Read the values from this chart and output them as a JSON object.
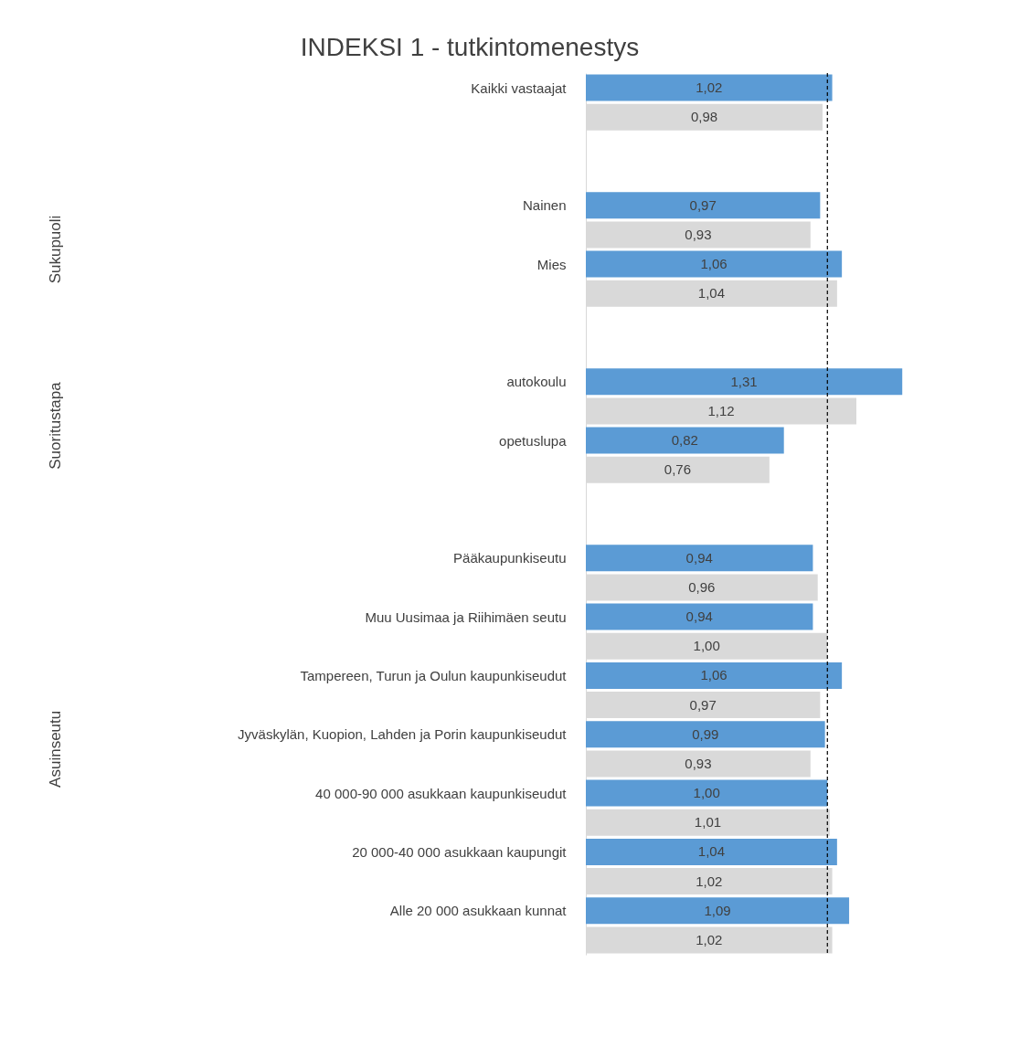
{
  "chart_data": {
    "type": "bar",
    "orientation": "horizontal",
    "title": "INDEKSI 1 - tutkintomenestys",
    "categories": [
      "Kaikki vastaajat",
      null,
      "Nainen",
      "Mies",
      null,
      "autokoulu",
      "opetuslupa",
      null,
      "Pääkaupunkiseutu",
      "Muu Uusimaa ja Riihimäen seutu",
      "Tampereen, Turun ja Oulun kaupunkiseudut",
      "Jyväskylän, Kuopion, Lahden ja Porin kaupunkiseudut",
      "40 000-90 000 asukkaan kaupunkiseudut",
      "20 000-40 000 asukkaan kaupungit",
      "Alle 20 000 asukkaan kunnat"
    ],
    "series": [
      {
        "color": "#5b9bd5",
        "values": [
          1.02,
          null,
          0.97,
          1.06,
          null,
          1.31,
          0.82,
          null,
          0.94,
          0.94,
          1.06,
          0.99,
          1.0,
          1.04,
          1.09
        ],
        "value_labels": [
          "1,02",
          null,
          "0,97",
          "1,06",
          null,
          "1,31",
          "0,82",
          null,
          "0,94",
          "0,94",
          "1,06",
          "0,99",
          "1,00",
          "1,04",
          "1,09"
        ]
      },
      {
        "color": "#d9d9d9",
        "values": [
          0.98,
          null,
          0.93,
          1.04,
          null,
          1.12,
          0.76,
          null,
          0.96,
          1.0,
          0.97,
          0.93,
          1.01,
          1.02,
          1.02
        ],
        "value_labels": [
          "0,98",
          null,
          "0,93",
          "1,04",
          null,
          "1,12",
          "0,76",
          null,
          "0,96",
          "1,00",
          "0,97",
          "0,93",
          "1,01",
          "1,02",
          "1,02"
        ]
      }
    ],
    "annotations": [
      "Sukupuoli",
      "Suoritustapa",
      "Asuinseutu"
    ],
    "ref_lines": [
      {
        "axis": "x",
        "value": 1,
        "line_style": "dashed",
        "color": "#000000"
      }
    ],
    "tick_labels": "y",
    "grid": false
  }
}
